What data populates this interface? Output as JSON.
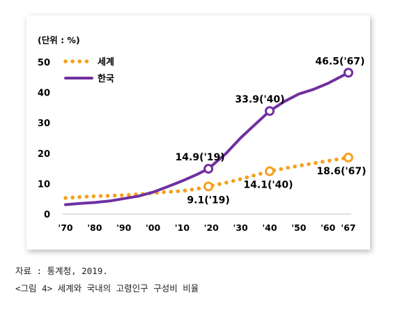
{
  "chart_data": {
    "type": "line",
    "unit_label": "(단위 : %)",
    "categories": [
      "'70",
      "'80",
      "'90",
      "'00",
      "'10",
      "'20",
      "'30",
      "'40",
      "'50",
      "'60",
      "'67"
    ],
    "x_years": [
      1970,
      1980,
      1990,
      2000,
      2010,
      2020,
      2030,
      2040,
      2050,
      2060,
      2067
    ],
    "ylim": [
      0,
      50
    ],
    "yticks": [
      0,
      10,
      20,
      30,
      40,
      50
    ],
    "grid": false,
    "legend_position": "top-left",
    "series": [
      {
        "name": "세계",
        "color": "#F5A01A",
        "style": "dotted",
        "points": [
          [
            1970,
            5.3
          ],
          [
            1975,
            5.6
          ],
          [
            1980,
            5.9
          ],
          [
            1985,
            6.0
          ],
          [
            1990,
            6.2
          ],
          [
            1995,
            6.5
          ],
          [
            2000,
            6.9
          ],
          [
            2005,
            7.3
          ],
          [
            2010,
            7.6
          ],
          [
            2015,
            8.3
          ],
          [
            2019,
            9.1
          ],
          [
            2025,
            10.3
          ],
          [
            2030,
            11.5
          ],
          [
            2035,
            12.8
          ],
          [
            2040,
            14.1
          ],
          [
            2045,
            15.0
          ],
          [
            2050,
            15.9
          ],
          [
            2055,
            16.7
          ],
          [
            2060,
            17.5
          ],
          [
            2067,
            18.6
          ]
        ],
        "markers": [
          {
            "year": 2019,
            "value": 9.1,
            "label": "9.1('19)"
          },
          {
            "year": 2040,
            "value": 14.1,
            "label": "14.1('40)"
          },
          {
            "year": 2067,
            "value": 18.6,
            "label": "18.6('67)"
          }
        ]
      },
      {
        "name": "한국",
        "color": "#7030A0",
        "style": "solid",
        "points": [
          [
            1970,
            3.1
          ],
          [
            1975,
            3.5
          ],
          [
            1980,
            3.8
          ],
          [
            1985,
            4.3
          ],
          [
            1990,
            5.1
          ],
          [
            1995,
            5.9
          ],
          [
            2000,
            7.2
          ],
          [
            2005,
            9.0
          ],
          [
            2010,
            10.9
          ],
          [
            2015,
            13.0
          ],
          [
            2019,
            14.9
          ],
          [
            2025,
            19.9
          ],
          [
            2030,
            25.0
          ],
          [
            2035,
            29.5
          ],
          [
            2040,
            33.9
          ],
          [
            2045,
            37.0
          ],
          [
            2050,
            39.5
          ],
          [
            2055,
            41.0
          ],
          [
            2060,
            43.0
          ],
          [
            2067,
            46.5
          ]
        ],
        "markers": [
          {
            "year": 2019,
            "value": 14.9,
            "label": "14.9('19)"
          },
          {
            "year": 2040,
            "value": 33.9,
            "label": "33.9('40)"
          },
          {
            "year": 2067,
            "value": 46.5,
            "label": "46.5('67)"
          }
        ]
      }
    ]
  },
  "captions": {
    "source": "자료 : 통계청, 2019.",
    "figure_title": "<그림 4> 세계와 국내의 고령인구 구성비 비율"
  }
}
